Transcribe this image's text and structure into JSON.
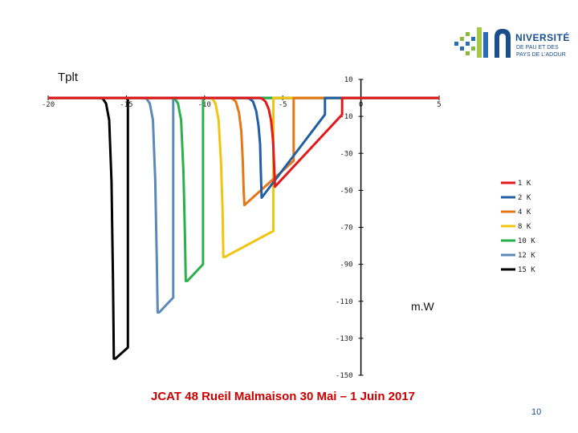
{
  "logo": {
    "line1": "NIVERSITÉ",
    "line2": "DE PAU ET DES",
    "line3": "PAYS DE L'ADOUR"
  },
  "footer": "JCAT 48 Rueil Malmaison 30 Mai – 1 Juin 2017",
  "page_number": "10",
  "chart_data": {
    "type": "line",
    "title": "Tplt",
    "ylabel": "",
    "xlabel": "",
    "unit_label": "m.W",
    "xlim": [
      -20,
      5
    ],
    "ylim": [
      -150,
      10
    ],
    "x_ticks": [
      "-20",
      "-15",
      "-10",
      "-5",
      "0",
      "5"
    ],
    "x_tick_values": [
      -20,
      -15,
      -10,
      -5,
      0,
      5
    ],
    "y_ticks": [
      "10",
      "-10",
      "-30",
      "-50",
      "-70",
      "-90",
      "-110",
      "-130",
      "-150"
    ],
    "y_tick_values": [
      10,
      -10,
      -30,
      -50,
      -70,
      -90,
      -110,
      -130,
      -150
    ],
    "legend_position": "right",
    "series": [
      {
        "name": "1 K",
        "color": "#e31a1c",
        "points": [
          [
            -20,
            0
          ],
          [
            -6.5,
            0
          ],
          [
            -6.3,
            -0.5
          ],
          [
            -6.1,
            -2
          ],
          [
            -5.9,
            -6
          ],
          [
            -5.75,
            -12
          ],
          [
            -5.65,
            -20
          ],
          [
            -5.6,
            -26
          ],
          [
            -5.5,
            -48
          ],
          [
            -1.2,
            -9
          ],
          [
            -1.2,
            -2
          ],
          [
            -1.2,
            0
          ],
          [
            5,
            0
          ]
        ]
      },
      {
        "name": "2 K",
        "color": "#1f5fa6",
        "points": [
          [
            -20,
            0
          ],
          [
            -7.3,
            0
          ],
          [
            -7.1,
            -0.5
          ],
          [
            -6.9,
            -2
          ],
          [
            -6.7,
            -7
          ],
          [
            -6.55,
            -15
          ],
          [
            -6.45,
            -25
          ],
          [
            -6.4,
            -40
          ],
          [
            -6.35,
            -54
          ],
          [
            -2.3,
            -9
          ],
          [
            -2.3,
            -2
          ],
          [
            -2.3,
            0
          ],
          [
            5,
            0
          ]
        ]
      },
      {
        "name": "4 K",
        "color": "#e57717",
        "points": [
          [
            -20,
            0
          ],
          [
            -8.4,
            0
          ],
          [
            -8.2,
            -0.5
          ],
          [
            -8.0,
            -2
          ],
          [
            -7.8,
            -8
          ],
          [
            -7.65,
            -18
          ],
          [
            -7.55,
            -35
          ],
          [
            -7.5,
            -50
          ],
          [
            -7.45,
            -58
          ],
          [
            -4.3,
            -34
          ],
          [
            -4.3,
            -5
          ],
          [
            -4.3,
            0
          ],
          [
            5,
            0
          ]
        ]
      },
      {
        "name": "8 K",
        "color": "#f2c40f",
        "points": [
          [
            -20,
            0
          ],
          [
            -9.7,
            0
          ],
          [
            -9.5,
            -0.5
          ],
          [
            -9.3,
            -3
          ],
          [
            -9.1,
            -12
          ],
          [
            -8.95,
            -35
          ],
          [
            -8.85,
            -60
          ],
          [
            -8.8,
            -86
          ],
          [
            -8.7,
            -86
          ],
          [
            -5.6,
            -72
          ],
          [
            -5.6,
            -10
          ],
          [
            -5.6,
            0
          ],
          [
            5,
            0
          ]
        ]
      },
      {
        "name": "10 K",
        "color": "#2ab04a",
        "points": [
          [
            -20,
            0
          ],
          [
            -12.1,
            0
          ],
          [
            -11.9,
            -0.5
          ],
          [
            -11.7,
            -3
          ],
          [
            -11.5,
            -12
          ],
          [
            -11.35,
            -40
          ],
          [
            -11.25,
            -75
          ],
          [
            -11.2,
            -99
          ],
          [
            -11.1,
            -99
          ],
          [
            -10.1,
            -90
          ],
          [
            -10.1,
            -10
          ],
          [
            -10.1,
            0
          ],
          [
            5,
            0
          ]
        ]
      },
      {
        "name": "12 K",
        "color": "#5b89b8",
        "points": [
          [
            -20,
            0
          ],
          [
            -13.9,
            0
          ],
          [
            -13.7,
            -0.5
          ],
          [
            -13.5,
            -3
          ],
          [
            -13.3,
            -12
          ],
          [
            -13.15,
            -45
          ],
          [
            -13.05,
            -90
          ],
          [
            -13.0,
            -116
          ],
          [
            -12.9,
            -116
          ],
          [
            -12.0,
            -108
          ],
          [
            -12.0,
            -10
          ],
          [
            -12.0,
            0
          ],
          [
            5,
            0
          ]
        ]
      },
      {
        "name": "15 K",
        "color": "#000000",
        "points": [
          [
            -20,
            0
          ],
          [
            -16.7,
            0
          ],
          [
            -16.5,
            -0.5
          ],
          [
            -16.3,
            -3
          ],
          [
            -16.1,
            -12
          ],
          [
            -15.95,
            -45
          ],
          [
            -15.85,
            -100
          ],
          [
            -15.8,
            -141
          ],
          [
            -15.7,
            -141
          ],
          [
            -14.9,
            -135
          ],
          [
            -14.9,
            -10
          ],
          [
            -14.9,
            0
          ],
          [
            5,
            0
          ]
        ]
      }
    ]
  }
}
